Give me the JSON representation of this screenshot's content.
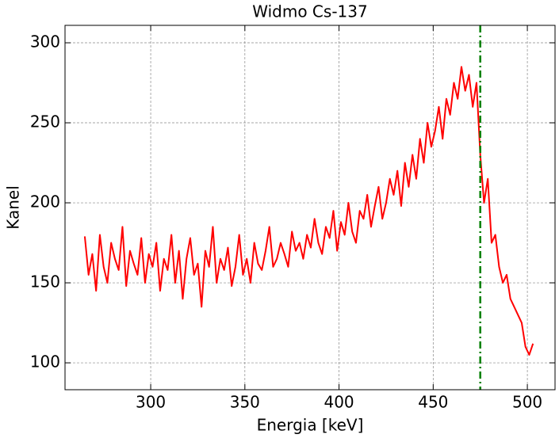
{
  "chart_data": {
    "type": "line",
    "title": "Widmo Cs-137",
    "xlabel": "Energia [keV]",
    "ylabel": "Kanel",
    "x": [
      265,
      267,
      269,
      271,
      273,
      275,
      277,
      279,
      281,
      283,
      285,
      287,
      289,
      291,
      293,
      295,
      297,
      299,
      301,
      303,
      305,
      307,
      309,
      311,
      313,
      315,
      317,
      319,
      321,
      323,
      325,
      327,
      329,
      331,
      333,
      335,
      337,
      339,
      341,
      343,
      345,
      347,
      349,
      351,
      353,
      355,
      357,
      359,
      361,
      363,
      365,
      367,
      369,
      371,
      373,
      375,
      377,
      379,
      381,
      383,
      385,
      387,
      389,
      391,
      393,
      395,
      397,
      399,
      401,
      403,
      405,
      407,
      409,
      411,
      413,
      415,
      417,
      419,
      421,
      423,
      425,
      427,
      429,
      431,
      433,
      435,
      437,
      439,
      441,
      443,
      445,
      447,
      449,
      451,
      453,
      455,
      457,
      459,
      461,
      463,
      465,
      467,
      469,
      471,
      473,
      475,
      477,
      479,
      481,
      483,
      485,
      487,
      489,
      491,
      493,
      495,
      497,
      499,
      501,
      503
    ],
    "series": [
      {
        "color": "#ff0000",
        "values": [
          179,
          155,
          168,
          145,
          180,
          160,
          150,
          175,
          165,
          158,
          185,
          148,
          170,
          162,
          155,
          178,
          150,
          168,
          160,
          175,
          145,
          165,
          158,
          180,
          150,
          170,
          140,
          165,
          178,
          155,
          162,
          135,
          170,
          160,
          185,
          150,
          165,
          158,
          172,
          148,
          160,
          180,
          155,
          165,
          150,
          175,
          162,
          158,
          170,
          185,
          160,
          165,
          175,
          168,
          160,
          182,
          170,
          175,
          165,
          180,
          172,
          190,
          175,
          168,
          185,
          178,
          195,
          170,
          188,
          180,
          200,
          182,
          175,
          195,
          190,
          205,
          185,
          198,
          210,
          190,
          200,
          215,
          205,
          220,
          198,
          225,
          210,
          230,
          215,
          240,
          225,
          250,
          235,
          245,
          260,
          240,
          265,
          255,
          275,
          265,
          285,
          270,
          280,
          260,
          275,
          230,
          200,
          215,
          175,
          180,
          160,
          150,
          155,
          140,
          135,
          130,
          125,
          110,
          105,
          112
        ]
      }
    ],
    "vlines": [
      {
        "x": 475,
        "color": "#008000"
      }
    ],
    "xlim": [
      254.5,
      514.7
    ],
    "ylim": [
      83.2,
      310.9
    ],
    "xticks": [
      300,
      350,
      400,
      450,
      500
    ],
    "yticks": [
      100,
      150,
      200,
      250,
      300
    ],
    "grid": true
  }
}
